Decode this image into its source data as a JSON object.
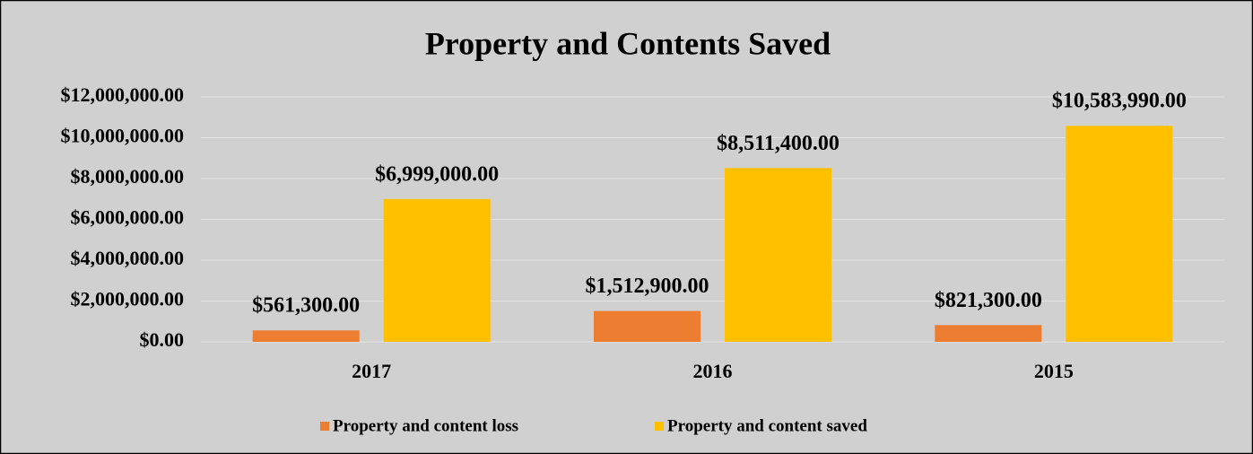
{
  "chart_data": {
    "type": "bar",
    "title": "Property and Contents Saved",
    "categories": [
      "2017",
      "2016",
      "2015"
    ],
    "series": [
      {
        "name": "Property and content loss",
        "color": "#ed7d31",
        "values": [
          561300,
          1512900,
          821300
        ],
        "value_labels": [
          "$561,300.00",
          "$1,512,900.00",
          "$821,300.00"
        ]
      },
      {
        "name": "Property and content saved",
        "color": "#ffc000",
        "values": [
          6999000,
          8511400,
          10583990
        ],
        "value_labels": [
          "$6,999,000.00",
          "$8,511,400.00",
          "$10,583,990.00"
        ]
      }
    ],
    "ylim": [
      0,
      12000000
    ],
    "yticks": [
      {
        "value": 0,
        "label": "$0.00"
      },
      {
        "value": 2000000,
        "label": "$2,000,000.00"
      },
      {
        "value": 4000000,
        "label": "$4,000,000.00"
      },
      {
        "value": 6000000,
        "label": "$6,000,000.00"
      },
      {
        "value": 8000000,
        "label": "$8,000,000.00"
      },
      {
        "value": 10000000,
        "label": "$10,000,000.00"
      },
      {
        "value": 12000000,
        "label": "$12,000,000.00"
      }
    ],
    "grid": true,
    "legend": "bottom"
  }
}
